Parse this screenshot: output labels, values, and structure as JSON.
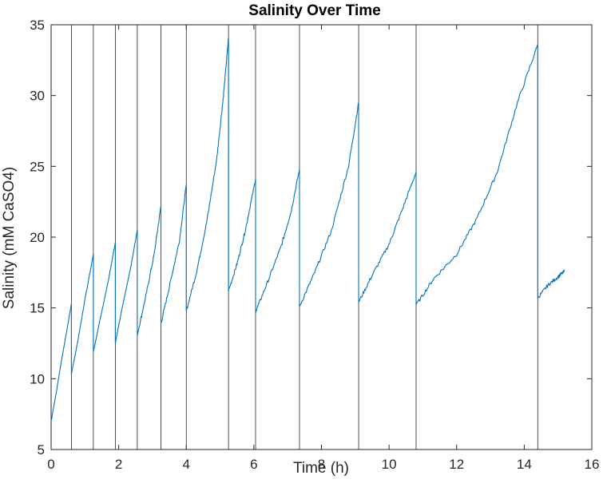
{
  "chart_data": {
    "type": "line",
    "title": "Salinity Over Time",
    "xlabel": "Time (h)",
    "ylabel": "Salinity (mM CaSO4)",
    "xlim": [
      0,
      16
    ],
    "ylim": [
      5,
      35
    ],
    "xticks": [
      0,
      2,
      4,
      6,
      8,
      10,
      12,
      14,
      16
    ],
    "yticks": [
      5,
      10,
      15,
      20,
      25,
      30,
      35
    ],
    "grid": false,
    "legend": "none",
    "line_color": "#0072BD",
    "marker_line_color": "#262626",
    "vertical_lines": [
      0.6,
      1.25,
      1.9,
      2.55,
      3.25,
      4.0,
      5.25,
      6.05,
      7.35,
      9.1,
      10.8,
      14.4
    ],
    "series": [
      {
        "segments": [
          {
            "x": [
              0.0,
              0.15,
              0.3,
              0.45,
              0.6
            ],
            "y": [
              7.0,
              9.0,
              11.2,
              13.2,
              15.3
            ]
          },
          {
            "x": [
              0.6,
              0.8,
              1.0,
              1.25
            ],
            "y": [
              10.3,
              12.8,
              15.6,
              18.8
            ]
          },
          {
            "x": [
              1.25,
              1.45,
              1.7,
              1.9
            ],
            "y": [
              11.9,
              14.2,
              17.0,
              19.6
            ]
          },
          {
            "x": [
              1.9,
              2.1,
              2.35,
              2.55
            ],
            "y": [
              12.5,
              15.0,
              17.8,
              20.5
            ]
          },
          {
            "x": [
              2.55,
              2.8,
              3.05,
              3.25
            ],
            "y": [
              13.1,
              15.8,
              18.8,
              22.2
            ]
          },
          {
            "x": [
              3.25,
              3.5,
              3.8,
              4.0
            ],
            "y": [
              13.9,
              16.5,
              19.8,
              23.7
            ]
          },
          {
            "x": [
              4.0,
              4.3,
              4.6,
              4.9,
              5.1,
              5.25
            ],
            "y": [
              14.8,
              17.5,
              21.0,
              25.5,
              30.0,
              34.1
            ]
          },
          {
            "x": [
              5.25,
              5.5,
              5.75,
              6.05
            ],
            "y": [
              16.2,
              18.1,
              20.5,
              24.1
            ]
          },
          {
            "x": [
              6.05,
              6.4,
              6.8,
              7.1,
              7.35
            ],
            "y": [
              14.7,
              16.8,
              19.3,
              21.8,
              24.8
            ]
          },
          {
            "x": [
              7.35,
              7.8,
              8.3,
              8.8,
              9.1
            ],
            "y": [
              15.1,
              17.5,
              20.5,
              25.0,
              29.5
            ]
          },
          {
            "x": [
              9.1,
              9.5,
              10.0,
              10.4,
              10.8
            ],
            "y": [
              15.4,
              17.3,
              19.5,
              22.0,
              24.6
            ]
          },
          {
            "x": [
              10.8,
              11.3,
              12.0,
              12.6,
              13.2,
              13.8,
              14.4
            ],
            "y": [
              15.2,
              17.0,
              18.8,
              21.3,
              24.6,
              29.5,
              33.6
            ]
          },
          {
            "x": [
              14.4,
              14.7,
              15.0,
              15.2
            ],
            "y": [
              15.7,
              16.6,
              17.2,
              17.6
            ]
          }
        ]
      }
    ]
  }
}
